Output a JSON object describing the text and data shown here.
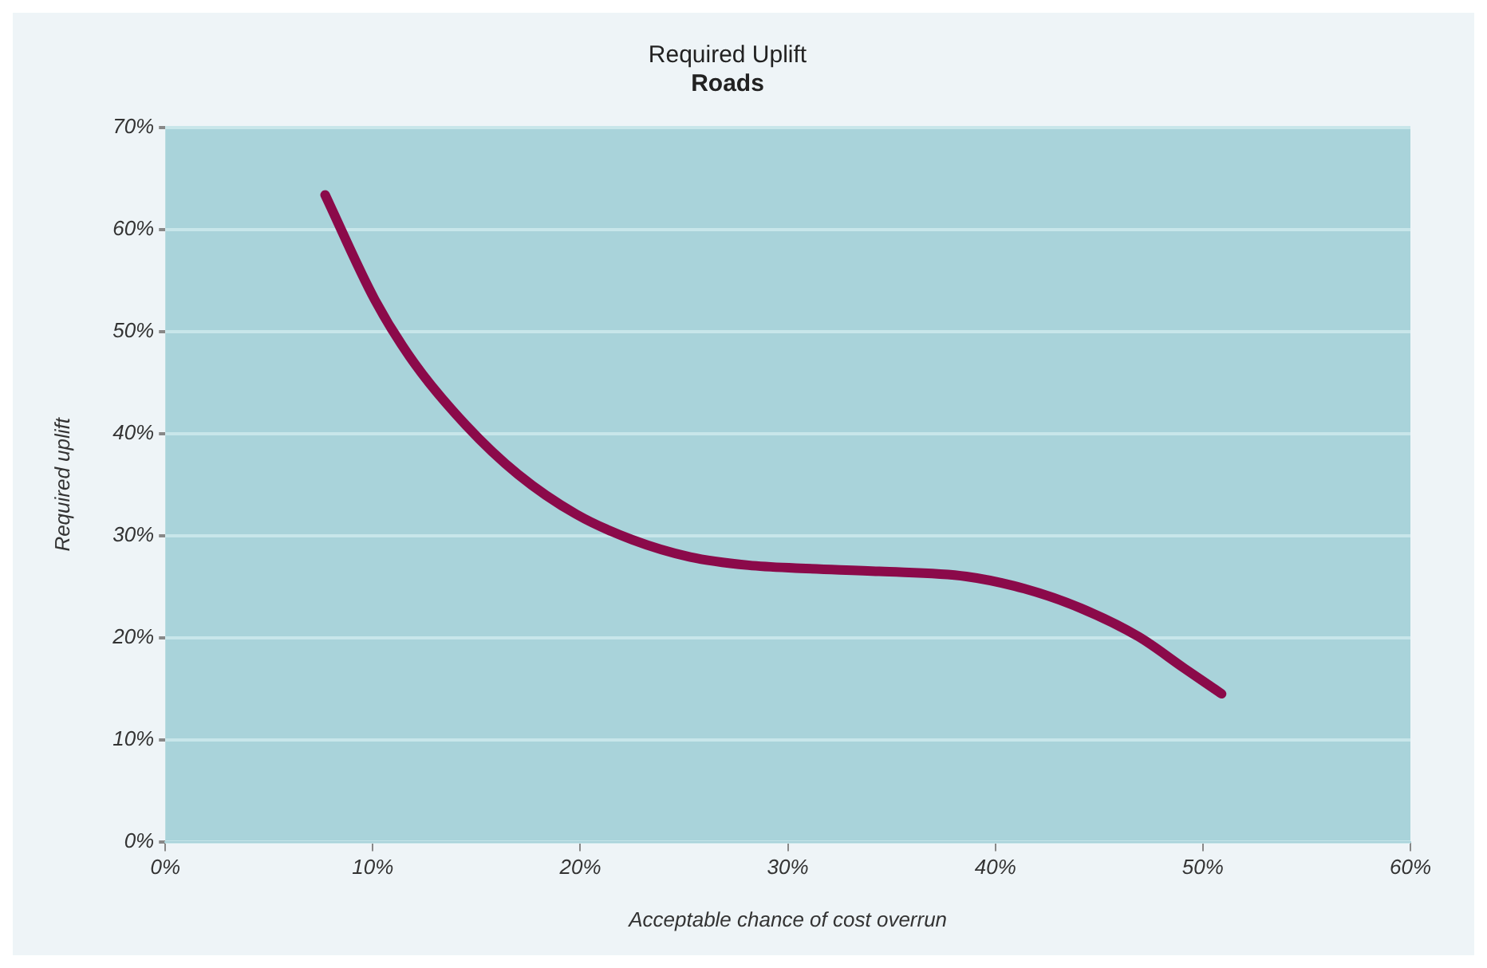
{
  "chart_data": {
    "type": "line",
    "title": "Required Uplift",
    "subtitle": "Roads",
    "xlabel": "Acceptable chance of cost overrun",
    "ylabel": "Required uplift",
    "series": [
      {
        "color": "#8b0a4a",
        "x": [
          7.7,
          10.1,
          12.0,
          14.5,
          17.0,
          19.8,
          22.5,
          25.3,
          28.1,
          30.6,
          34.4,
          38.6,
          41.4,
          44.1,
          46.9,
          49.1,
          50.9
        ],
        "values": [
          63.4,
          53.1,
          46.9,
          40.8,
          36.0,
          32.1,
          29.6,
          27.9,
          27.1,
          26.8,
          26.5,
          26.0,
          24.8,
          22.9,
          20.1,
          17.0,
          14.5
        ]
      }
    ],
    "xlim": [
      0,
      60
    ],
    "xticks": [
      {
        "value": 0,
        "label": "0%"
      },
      {
        "value": 10,
        "label": "10%"
      },
      {
        "value": 20,
        "label": "20%"
      },
      {
        "value": 30,
        "label": "30%"
      },
      {
        "value": 40,
        "label": "40%"
      },
      {
        "value": 50,
        "label": "50%"
      },
      {
        "value": 60,
        "label": "60%"
      }
    ],
    "ylim": [
      0,
      70
    ],
    "yticks": [
      {
        "value": 0,
        "label": "0%"
      },
      {
        "value": 10,
        "label": "10%"
      },
      {
        "value": 20,
        "label": "20%"
      },
      {
        "value": 30,
        "label": "30%"
      },
      {
        "value": 40,
        "label": "40%"
      },
      {
        "value": 50,
        "label": "50%"
      },
      {
        "value": 60,
        "label": "60%"
      },
      {
        "value": 70,
        "label": "70%"
      }
    ],
    "grid": "y",
    "legend": false,
    "marker": "none",
    "line_style": "solid"
  }
}
